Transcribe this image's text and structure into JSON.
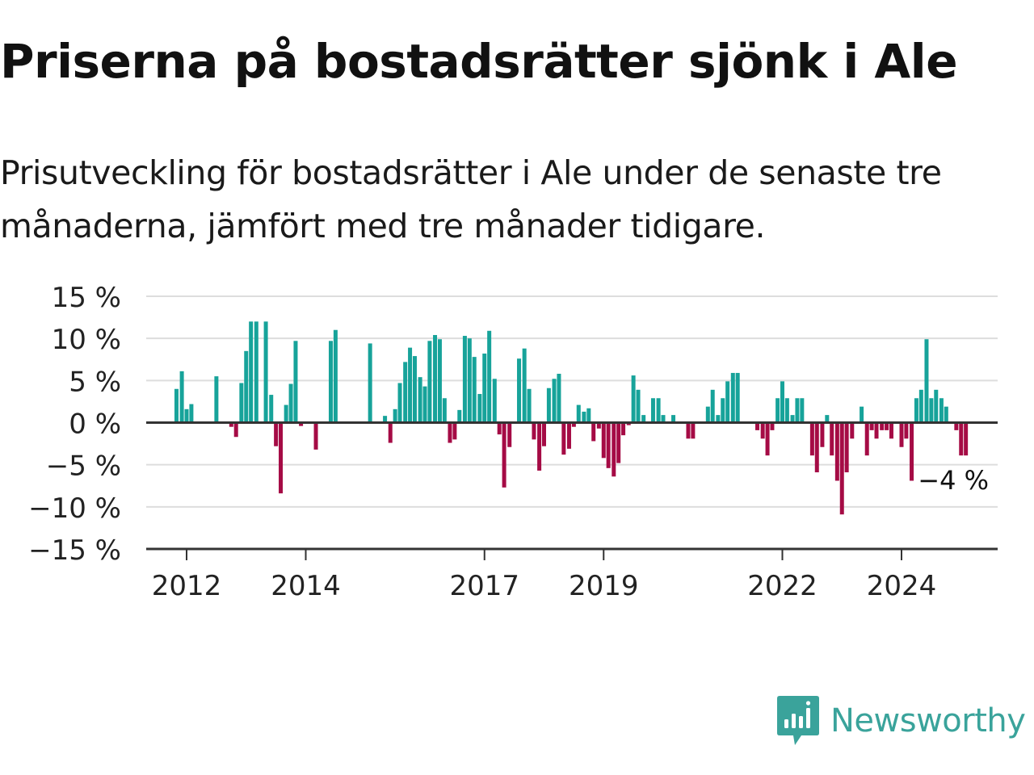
{
  "title": "Priserna på bostadsrätter sjönk i Ale",
  "subtitle": "Prisutveckling för bostadsrätter i Ale under de senaste tre månaderna, jämfört med tre månader tidigare.",
  "brand": {
    "name": "Newsworthy",
    "icon": "newsworthy-logo-icon"
  },
  "colors": {
    "positive": "#17a39a",
    "negative": "#a50b45",
    "grid": "#dddddd",
    "axis": "#333333",
    "brand": "#3aa39b"
  },
  "chart_data": {
    "type": "bar",
    "y_unit": "%",
    "ylim": [
      -15,
      15
    ],
    "yticks": [
      15,
      10,
      5,
      0,
      -5,
      -10,
      -15
    ],
    "ytick_labels": [
      "15 %",
      "10 %",
      "5 %",
      "0 %",
      "−5 %",
      "−10 %",
      "−15 %"
    ],
    "xticks": [
      2012,
      2014,
      2017,
      2019,
      2022,
      2024
    ],
    "xtick_labels": [
      "2012",
      "2014",
      "2017",
      "2019",
      "2022",
      "2024"
    ],
    "grid": true,
    "legend": "none",
    "last_value_label": "−4 %",
    "bars": [
      {
        "x": 2011.83,
        "value": 4.0
      },
      {
        "x": 2011.92,
        "value": 6.1
      },
      {
        "x": 2012.0,
        "value": 1.6
      },
      {
        "x": 2012.08,
        "value": 2.2
      },
      {
        "x": 2012.5,
        "value": 5.5
      },
      {
        "x": 2012.75,
        "value": -0.5
      },
      {
        "x": 2012.83,
        "value": -1.7
      },
      {
        "x": 2012.92,
        "value": 4.7
      },
      {
        "x": 2013.0,
        "value": 8.5
      },
      {
        "x": 2013.08,
        "value": 12.0
      },
      {
        "x": 2013.17,
        "value": 12.0
      },
      {
        "x": 2013.33,
        "value": 12.0
      },
      {
        "x": 2013.42,
        "value": 3.3
      },
      {
        "x": 2013.5,
        "value": -2.8
      },
      {
        "x": 2013.58,
        "value": -8.4
      },
      {
        "x": 2013.67,
        "value": 2.1
      },
      {
        "x": 2013.75,
        "value": 4.6
      },
      {
        "x": 2013.83,
        "value": 9.7
      },
      {
        "x": 2013.92,
        "value": -0.4
      },
      {
        "x": 2014.17,
        "value": -3.2
      },
      {
        "x": 2014.42,
        "value": 9.7
      },
      {
        "x": 2014.5,
        "value": 11.0
      },
      {
        "x": 2015.08,
        "value": 9.4
      },
      {
        "x": 2015.33,
        "value": 0.8
      },
      {
        "x": 2015.42,
        "value": -2.4
      },
      {
        "x": 2015.5,
        "value": 1.6
      },
      {
        "x": 2015.58,
        "value": 4.7
      },
      {
        "x": 2015.67,
        "value": 7.2
      },
      {
        "x": 2015.75,
        "value": 8.9
      },
      {
        "x": 2015.83,
        "value": 7.9
      },
      {
        "x": 2015.92,
        "value": 5.4
      },
      {
        "x": 2016.0,
        "value": 4.3
      },
      {
        "x": 2016.08,
        "value": 9.7
      },
      {
        "x": 2016.17,
        "value": 10.4
      },
      {
        "x": 2016.25,
        "value": 9.9
      },
      {
        "x": 2016.33,
        "value": 2.9
      },
      {
        "x": 2016.42,
        "value": -2.4
      },
      {
        "x": 2016.5,
        "value": -2.0
      },
      {
        "x": 2016.58,
        "value": 1.5
      },
      {
        "x": 2016.67,
        "value": 10.3
      },
      {
        "x": 2016.75,
        "value": 10.0
      },
      {
        "x": 2016.83,
        "value": 7.8
      },
      {
        "x": 2016.92,
        "value": 3.4
      },
      {
        "x": 2017.0,
        "value": 8.2
      },
      {
        "x": 2017.08,
        "value": 10.9
      },
      {
        "x": 2017.17,
        "value": 5.2
      },
      {
        "x": 2017.25,
        "value": -1.4
      },
      {
        "x": 2017.33,
        "value": -7.7
      },
      {
        "x": 2017.42,
        "value": -2.9
      },
      {
        "x": 2017.58,
        "value": 7.6
      },
      {
        "x": 2017.67,
        "value": 8.8
      },
      {
        "x": 2017.75,
        "value": 4.0
      },
      {
        "x": 2017.83,
        "value": -2.0
      },
      {
        "x": 2017.92,
        "value": -5.7
      },
      {
        "x": 2018.0,
        "value": -2.8
      },
      {
        "x": 2018.08,
        "value": 4.1
      },
      {
        "x": 2018.17,
        "value": 5.2
      },
      {
        "x": 2018.25,
        "value": 5.8
      },
      {
        "x": 2018.33,
        "value": -3.8
      },
      {
        "x": 2018.42,
        "value": -3.1
      },
      {
        "x": 2018.5,
        "value": -0.5
      },
      {
        "x": 2018.58,
        "value": 2.1
      },
      {
        "x": 2018.67,
        "value": 1.3
      },
      {
        "x": 2018.75,
        "value": 1.7
      },
      {
        "x": 2018.83,
        "value": -2.2
      },
      {
        "x": 2018.92,
        "value": -0.7
      },
      {
        "x": 2019.0,
        "value": -4.2
      },
      {
        "x": 2019.08,
        "value": -5.4
      },
      {
        "x": 2019.17,
        "value": -6.4
      },
      {
        "x": 2019.25,
        "value": -4.8
      },
      {
        "x": 2019.33,
        "value": -1.5
      },
      {
        "x": 2019.42,
        "value": -0.3
      },
      {
        "x": 2019.5,
        "value": 5.6
      },
      {
        "x": 2019.58,
        "value": 3.9
      },
      {
        "x": 2019.67,
        "value": 0.9
      },
      {
        "x": 2019.83,
        "value": 2.9
      },
      {
        "x": 2019.92,
        "value": 2.9
      },
      {
        "x": 2020.0,
        "value": 0.9
      },
      {
        "x": 2020.17,
        "value": 0.9
      },
      {
        "x": 2020.42,
        "value": -1.9
      },
      {
        "x": 2020.5,
        "value": -1.9
      },
      {
        "x": 2020.75,
        "value": 1.9
      },
      {
        "x": 2020.83,
        "value": 3.9
      },
      {
        "x": 2020.92,
        "value": 0.9
      },
      {
        "x": 2021.0,
        "value": 2.9
      },
      {
        "x": 2021.08,
        "value": 4.9
      },
      {
        "x": 2021.17,
        "value": 5.9
      },
      {
        "x": 2021.25,
        "value": 5.9
      },
      {
        "x": 2021.58,
        "value": -0.9
      },
      {
        "x": 2021.67,
        "value": -1.9
      },
      {
        "x": 2021.75,
        "value": -3.9
      },
      {
        "x": 2021.83,
        "value": -0.9
      },
      {
        "x": 2021.92,
        "value": 2.9
      },
      {
        "x": 2022.0,
        "value": 4.9
      },
      {
        "x": 2022.08,
        "value": 2.9
      },
      {
        "x": 2022.17,
        "value": 0.9
      },
      {
        "x": 2022.25,
        "value": 2.9
      },
      {
        "x": 2022.33,
        "value": 2.9
      },
      {
        "x": 2022.5,
        "value": -3.9
      },
      {
        "x": 2022.58,
        "value": -5.9
      },
      {
        "x": 2022.67,
        "value": -2.9
      },
      {
        "x": 2022.75,
        "value": 0.9
      },
      {
        "x": 2022.83,
        "value": -3.9
      },
      {
        "x": 2022.92,
        "value": -6.9
      },
      {
        "x": 2023.0,
        "value": -10.9
      },
      {
        "x": 2023.08,
        "value": -5.9
      },
      {
        "x": 2023.17,
        "value": -1.9
      },
      {
        "x": 2023.33,
        "value": 1.9
      },
      {
        "x": 2023.42,
        "value": -3.9
      },
      {
        "x": 2023.5,
        "value": -0.9
      },
      {
        "x": 2023.58,
        "value": -1.9
      },
      {
        "x": 2023.67,
        "value": -0.9
      },
      {
        "x": 2023.75,
        "value": -0.9
      },
      {
        "x": 2023.83,
        "value": -1.9
      },
      {
        "x": 2024.0,
        "value": -2.9
      },
      {
        "x": 2024.08,
        "value": -1.9
      },
      {
        "x": 2024.17,
        "value": -6.9
      },
      {
        "x": 2024.25,
        "value": 2.9
      },
      {
        "x": 2024.33,
        "value": 3.9
      },
      {
        "x": 2024.42,
        "value": 9.9
      },
      {
        "x": 2024.5,
        "value": 2.9
      },
      {
        "x": 2024.58,
        "value": 3.9
      },
      {
        "x": 2024.67,
        "value": 2.9
      },
      {
        "x": 2024.75,
        "value": 1.9
      },
      {
        "x": 2024.92,
        "value": -0.9
      },
      {
        "x": 2025.0,
        "value": -3.9
      },
      {
        "x": 2025.08,
        "value": -3.9
      }
    ]
  }
}
